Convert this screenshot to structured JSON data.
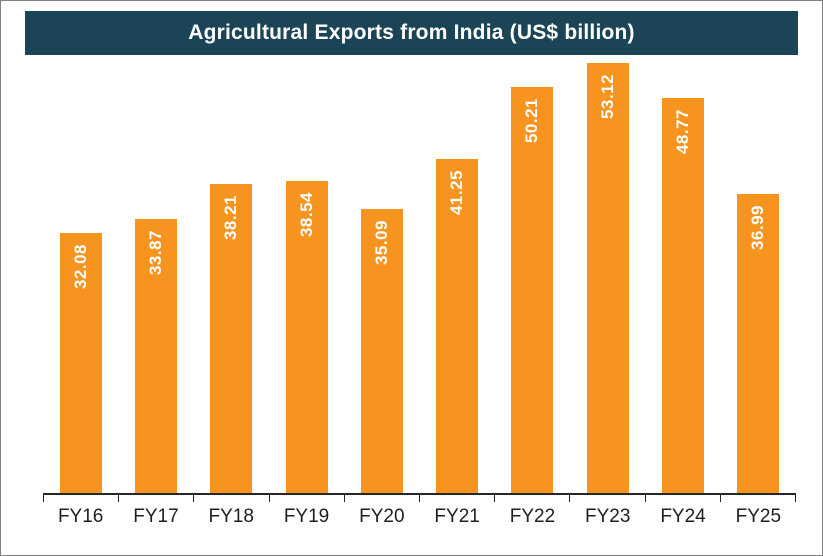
{
  "title": "Agricultural Exports from India (US$ billion)",
  "colors": {
    "header_bg": "#1B4557",
    "bar": "#F79420",
    "title_text": "#FFFFFF",
    "value_label_text": "#FFFFFF",
    "axis": "#262626",
    "x_label_text": "#1F1F1F"
  },
  "chart_data": {
    "type": "bar",
    "title": "Agricultural Exports from India (US$ billion)",
    "categories": [
      "FY16",
      "FY17",
      "FY18",
      "FY19",
      "FY20",
      "FY21",
      "FY22",
      "FY23",
      "FY24",
      "FY25"
    ],
    "values": [
      32.08,
      33.87,
      38.21,
      38.54,
      35.09,
      41.25,
      50.21,
      53.12,
      48.77,
      36.99
    ],
    "value_labels": [
      "32.08",
      "33.87",
      "38.21",
      "38.54",
      "35.09",
      "41.25",
      "50.21",
      "53.12",
      "48.77",
      "36.99"
    ],
    "xlabel": "",
    "ylabel": "",
    "ylim": [
      0,
      56
    ],
    "grid": false,
    "legend": false,
    "value_label_rotation": 90,
    "value_label_position": "inside-top"
  }
}
